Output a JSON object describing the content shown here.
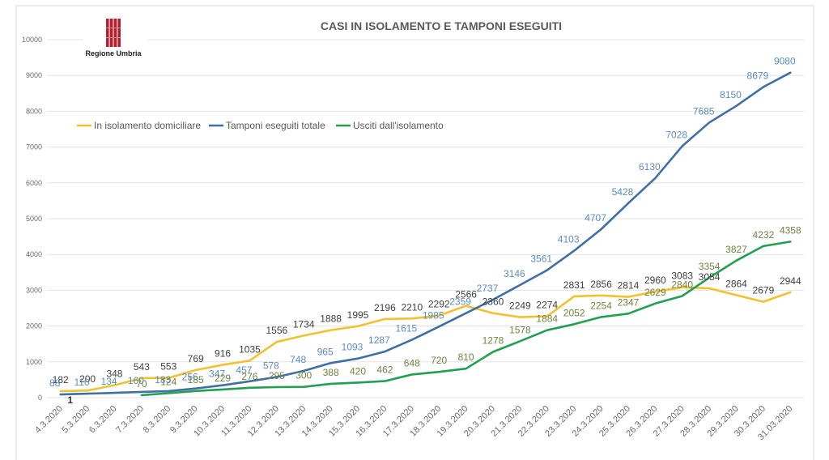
{
  "logo": {
    "text": "Regione Umbria"
  },
  "chart_data": {
    "type": "line",
    "title": "CASI IN ISOLAMENTO E TAMPONI ESEGUITI",
    "xlabel": "",
    "ylabel": "",
    "ylim": [
      0,
      10000
    ],
    "yticks": [
      0,
      1000,
      2000,
      3000,
      4000,
      5000,
      6000,
      7000,
      8000,
      9000,
      10000
    ],
    "grid": true,
    "legend_position": "upper-left",
    "categories": [
      "4.3.2020",
      "5.3.2020",
      "6.3.2020",
      "7.3.2020",
      "8.3.2020",
      "9.3.2020",
      "10.3.2020",
      "11.3.2020",
      "12.3.2020",
      "13.3.2020",
      "14.3.2020",
      "15.3.2020",
      "16.3.2020",
      "17.3.2020",
      "18.3.2020",
      "19.3.2020",
      "20.3.2020",
      "21.3.2020",
      "22.3.2020",
      "23.3.2020",
      "24.3.2020",
      "25.3.2020",
      "26.3.2020",
      "27.3.2020",
      "28.3.2020",
      "29.3.2020",
      "30.3.2020",
      "31.03.2020"
    ],
    "series": [
      {
        "name": "In isolamento domiciliare",
        "color": "#F2C12E",
        "label_color": "#404040",
        "values": [
          182,
          200,
          348,
          543,
          553,
          769,
          916,
          1035,
          1556,
          1734,
          1888,
          1995,
          2196,
          2210,
          2292,
          2566,
          2360,
          2249,
          2274,
          2831,
          2856,
          2814,
          2960,
          3083,
          3054,
          2864,
          2679,
          2944
        ]
      },
      {
        "name": "Tamponi eseguiti totale",
        "color": "#3E6FA7",
        "label_color": "#5B8CC0",
        "values": [
          88,
          110,
          134,
          160,
          183,
          256,
          347,
          457,
          578,
          748,
          965,
          1093,
          1287,
          1615,
          1985,
          2359,
          2737,
          3146,
          3561,
          4103,
          4707,
          5428,
          6130,
          7028,
          7685,
          8150,
          8679,
          9080
        ]
      },
      {
        "name": "Usciti dall'isolamento",
        "color": "#22A050",
        "label_color": "#6E8540",
        "values": [
          null,
          null,
          null,
          70,
          124,
          185,
          229,
          276,
          295,
          300,
          388,
          420,
          462,
          648,
          720,
          810,
          1278,
          1578,
          1884,
          2052,
          2254,
          2347,
          2629,
          2840,
          3354,
          3827,
          4232,
          4358
        ]
      }
    ],
    "annotations": [
      {
        "category": "4.3.2020",
        "text": "1"
      }
    ]
  }
}
